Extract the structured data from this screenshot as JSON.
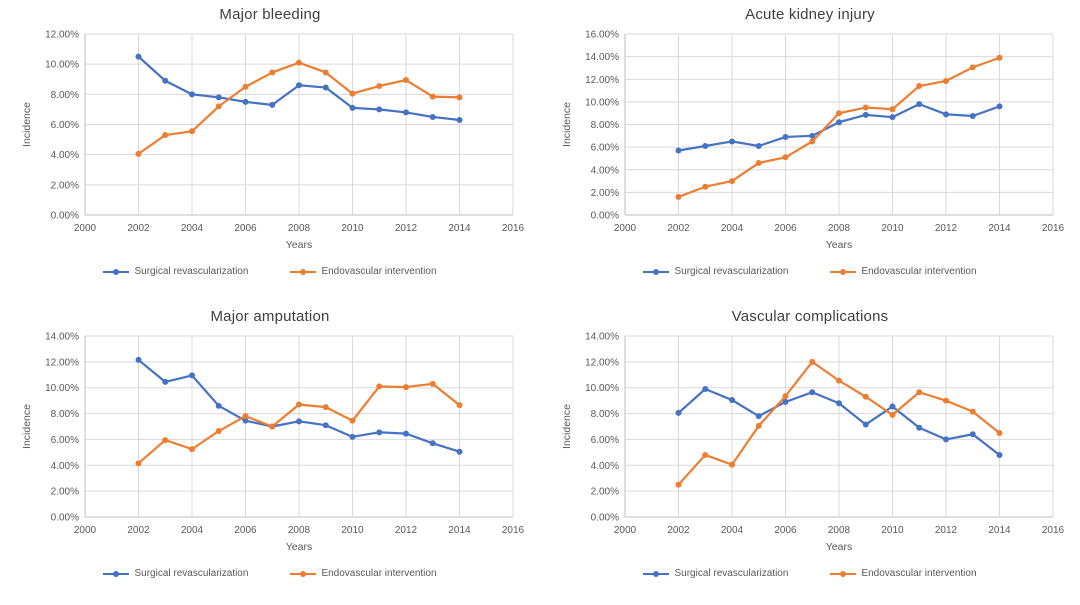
{
  "page": {
    "background": "#ffffff",
    "series_colors": {
      "surgical": "#4472C4",
      "endovascular": "#ED7D31"
    },
    "text_colors": {
      "title": "#404040",
      "axis": "#595959",
      "gridline": "#d9d9d9"
    }
  },
  "chart_data": [
    {
      "type": "line",
      "title": "Major bleeding",
      "xlabel": "Years",
      "ylabel": "Incidence",
      "xlim": [
        2000,
        2016
      ],
      "x_ticks": [
        2000,
        2002,
        2004,
        2006,
        2008,
        2010,
        2012,
        2014,
        2016
      ],
      "ylim": [
        0,
        12
      ],
      "y_ticks": [
        "0.00%",
        "2.00%",
        "4.00%",
        "6.00%",
        "8.00%",
        "10.00%",
        "12.00%"
      ],
      "grid": true,
      "legend_position": "bottom",
      "x": [
        2002,
        2003,
        2004,
        2005,
        2006,
        2007,
        2008,
        2009,
        2010,
        2011,
        2012,
        2013,
        2014
      ],
      "series": [
        {
          "name": "Surgical revascularization",
          "color": "#4472C4",
          "values": [
            10.5,
            8.9,
            8.0,
            7.8,
            7.5,
            7.3,
            8.6,
            8.45,
            7.1,
            7.0,
            6.8,
            6.5,
            6.3
          ]
        },
        {
          "name": "Endovascular intervention",
          "color": "#ED7D31",
          "values": [
            4.05,
            5.3,
            5.55,
            7.2,
            8.5,
            9.45,
            10.1,
            9.45,
            8.05,
            8.55,
            8.95,
            7.85,
            7.8
          ]
        }
      ]
    },
    {
      "type": "line",
      "title": "Acute kidney injury",
      "xlabel": "Years",
      "ylabel": "Incidence",
      "xlim": [
        2000,
        2016
      ],
      "x_ticks": [
        2000,
        2002,
        2004,
        2006,
        2008,
        2010,
        2012,
        2014,
        2016
      ],
      "ylim": [
        0,
        16
      ],
      "y_ticks": [
        "0.00%",
        "2.00%",
        "4.00%",
        "6.00%",
        "8.00%",
        "10.00%",
        "12.00%",
        "14.00%",
        "16.00%"
      ],
      "grid": true,
      "legend_position": "bottom",
      "x": [
        2002,
        2003,
        2004,
        2005,
        2006,
        2007,
        2008,
        2009,
        2010,
        2011,
        2012,
        2013,
        2014
      ],
      "series": [
        {
          "name": "Surgical revascularization",
          "color": "#4472C4",
          "values": [
            5.7,
            6.1,
            6.5,
            6.1,
            6.9,
            7.0,
            8.2,
            8.85,
            8.65,
            9.8,
            8.9,
            8.75,
            9.6
          ]
        },
        {
          "name": "Endovascular intervention",
          "color": "#ED7D31",
          "values": [
            1.6,
            2.5,
            3.0,
            4.6,
            5.1,
            6.5,
            9.0,
            9.5,
            9.35,
            11.4,
            11.85,
            13.05,
            13.9
          ]
        }
      ]
    },
    {
      "type": "line",
      "title": "Major amputation",
      "xlabel": "Years",
      "ylabel": "Incidence",
      "xlim": [
        2000,
        2016
      ],
      "x_ticks": [
        2000,
        2002,
        2004,
        2006,
        2008,
        2010,
        2012,
        2014,
        2016
      ],
      "ylim": [
        0,
        14
      ],
      "y_ticks": [
        "0.00%",
        "2.00%",
        "4.00%",
        "6.00%",
        "8.00%",
        "10.00%",
        "12.00%",
        "14.00%"
      ],
      "grid": true,
      "legend_position": "bottom",
      "x": [
        2002,
        2003,
        2004,
        2005,
        2006,
        2007,
        2008,
        2009,
        2010,
        2011,
        2012,
        2013,
        2014
      ],
      "series": [
        {
          "name": "Surgical revascularization",
          "color": "#4472C4",
          "values": [
            12.15,
            10.45,
            10.95,
            8.6,
            7.45,
            7.0,
            7.4,
            7.1,
            6.2,
            6.55,
            6.45,
            5.7,
            5.05
          ]
        },
        {
          "name": "Endovascular intervention",
          "color": "#ED7D31",
          "values": [
            4.15,
            5.95,
            5.25,
            6.65,
            7.8,
            7.0,
            8.7,
            8.5,
            7.45,
            10.1,
            10.05,
            10.3,
            8.65
          ]
        }
      ]
    },
    {
      "type": "line",
      "title": "Vascular complications",
      "xlabel": "Years",
      "ylabel": "Incidence",
      "xlim": [
        2000,
        2016
      ],
      "x_ticks": [
        2000,
        2002,
        2004,
        2006,
        2008,
        2010,
        2012,
        2014,
        2016
      ],
      "ylim": [
        0,
        14
      ],
      "y_ticks": [
        "0.00%",
        "2.00%",
        "4.00%",
        "6.00%",
        "8.00%",
        "10.00%",
        "12.00%",
        "14.00%"
      ],
      "grid": true,
      "legend_position": "bottom",
      "x": [
        2002,
        2003,
        2004,
        2005,
        2006,
        2007,
        2008,
        2009,
        2010,
        2011,
        2012,
        2013,
        2014
      ],
      "series": [
        {
          "name": "Surgical revascularization",
          "color": "#4472C4",
          "values": [
            8.05,
            9.9,
            9.05,
            7.8,
            8.9,
            9.65,
            8.8,
            7.15,
            8.55,
            6.9,
            6.0,
            6.4,
            4.8
          ]
        },
        {
          "name": "Endovascular intervention",
          "color": "#ED7D31",
          "values": [
            2.5,
            4.8,
            4.05,
            7.05,
            9.35,
            12.0,
            10.55,
            9.3,
            7.9,
            9.65,
            9.0,
            8.15,
            6.5
          ]
        }
      ]
    }
  ]
}
